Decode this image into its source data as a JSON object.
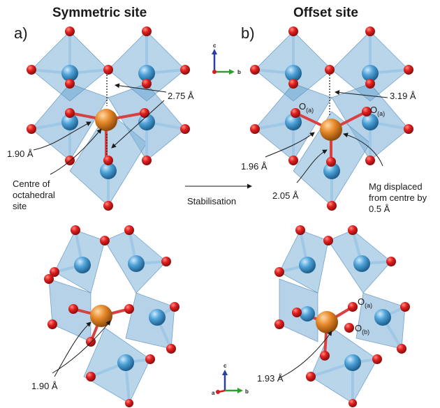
{
  "titles": {
    "left": "Symmetric site",
    "right": "Offset site"
  },
  "panels": {
    "a": "a)",
    "b": "b)"
  },
  "labels": {
    "a_dist_top": "2.75 Å",
    "a_dist_left": "1.90 Å",
    "a_centre": [
      "Centre of",
      "octahedral",
      "site"
    ],
    "b_dist_top": "3.19 Å",
    "b_dist_left": "1.96 Å",
    "b_dist_bottom": "2.05 Å",
    "b_mg": [
      "Mg displaced",
      "from centre by",
      "0.5 Å"
    ],
    "b_oa1": "O",
    "b_oa2": "O",
    "sub_a": "(a)",
    "stabilisation": "Stabilisation",
    "bl_dist": "1.90 Å",
    "br_dist": "1.93 Å",
    "br_oa": "O",
    "br_ob": "O",
    "sub_b": "(b)"
  },
  "axes": {
    "top": {
      "c": "c",
      "b": "b"
    },
    "bottom": {
      "c": "c",
      "a": "a",
      "b": "b"
    }
  },
  "colors": {
    "octahedra": "#7fb2d9",
    "oxygen": "#d41c1c",
    "cation": "#4fa3d8",
    "magnesium": "#e07b1f",
    "axis_c": "#2a3fa3",
    "axis_b": "#2ca02c",
    "axis_a": "#d41c1c"
  },
  "icons": [
    "crystal-axis-icon"
  ]
}
